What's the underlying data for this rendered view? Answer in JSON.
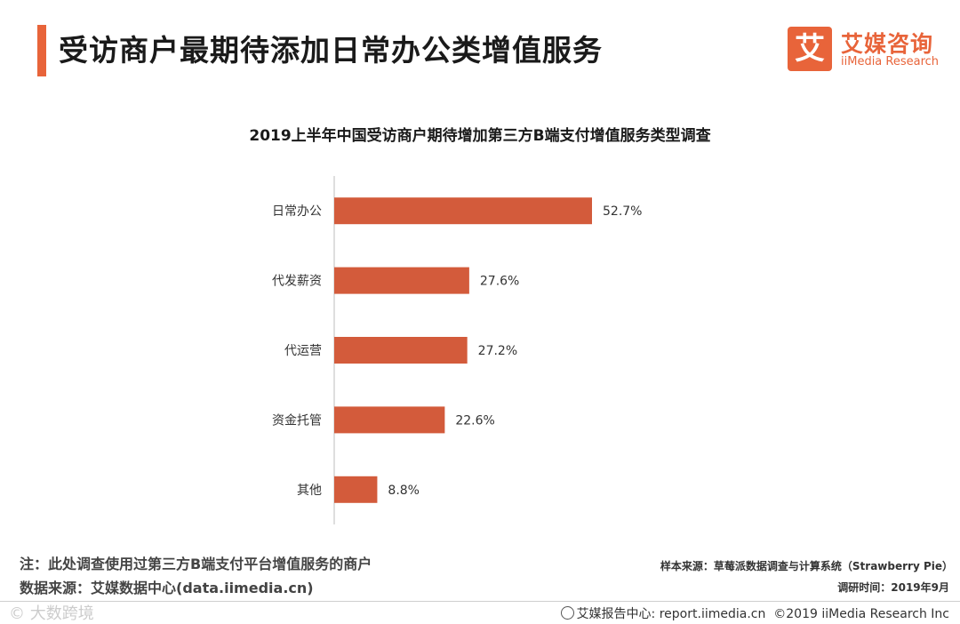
{
  "header": {
    "title": "受访商户最期待添加日常办公类增值服务"
  },
  "logo": {
    "glyph": "艾",
    "name_cn": "艾媒咨询",
    "name_en": "iiMedia Research"
  },
  "chart_data": {
    "type": "bar",
    "orientation": "horizontal",
    "title": "2019上半年中国受访商户期待增加第三方B端支付增值服务类型调查",
    "categories": [
      "日常办公",
      "代发薪资",
      "代运营",
      "资金托管",
      "其他"
    ],
    "values": [
      52.7,
      27.6,
      27.2,
      22.6,
      8.8
    ],
    "value_labels": [
      "52.7%",
      "27.6%",
      "27.2%",
      "22.6%",
      "8.8%"
    ],
    "unit": "%",
    "xlim": [
      0,
      100
    ],
    "bar_color": "#d35b3b",
    "xlabel": "",
    "ylabel": ""
  },
  "footer": {
    "note": "注：此处调查使用过第三方B端支付平台增值服务的商户",
    "source": "数据来源：艾媒数据中心(data.iimedia.cn)",
    "sample": "样本来源：草莓派数据调查与计算系统（Strawberry Pie）",
    "survey_time": "调研时间：2019年9月",
    "report_center": "艾媒报告中心: report.iimedia.cn",
    "copyright": "©2019  iiMedia Research  Inc",
    "watermark": "© 大数跨境"
  },
  "colors": {
    "accent": "#e8643a",
    "bar": "#d35b3b"
  }
}
